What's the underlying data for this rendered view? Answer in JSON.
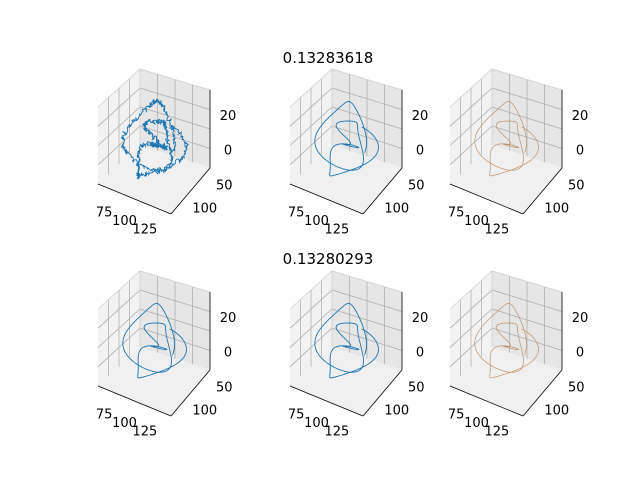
{
  "colors": {
    "blue": "#1f77b4",
    "tan": "#c0936d",
    "pane": "#f2f2f2",
    "pane_dark": "#e6e6e6",
    "grid": "#b0b0b0"
  },
  "chart_data": {
    "type": "line",
    "projection": "3d",
    "rows": [
      {
        "title": "0.13283618"
      },
      {
        "title": "0.13280293"
      }
    ],
    "x_ticks": [
      "75",
      "100",
      "125"
    ],
    "y_ticks": [
      "100",
      "50"
    ],
    "z_ticks": [
      "20",
      "0"
    ],
    "xlim": [
      60,
      140
    ],
    "ylim": [
      20,
      110
    ],
    "zlim": [
      -10,
      35
    ],
    "grid": true,
    "panels": [
      {
        "row": 0,
        "col": 0,
        "color": "blue",
        "style": "noisy-spiral"
      },
      {
        "row": 0,
        "col": 1,
        "color": "blue",
        "style": "spiral"
      },
      {
        "row": 0,
        "col": 2,
        "color": "tan",
        "style": "spiral"
      },
      {
        "row": 1,
        "col": 0,
        "color": "blue",
        "style": "spiral"
      },
      {
        "row": 1,
        "col": 1,
        "color": "blue",
        "style": "spiral"
      },
      {
        "row": 1,
        "col": 2,
        "color": "tan",
        "style": "spiral"
      }
    ]
  }
}
